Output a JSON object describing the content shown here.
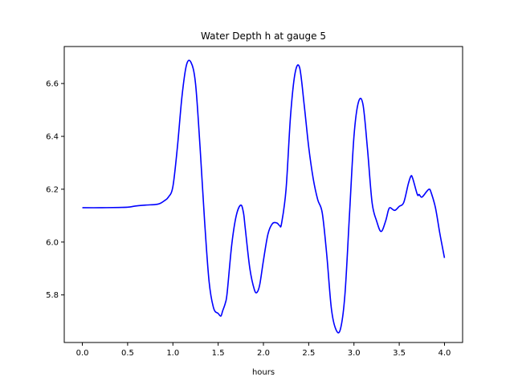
{
  "chart_data": {
    "type": "line",
    "title": "Water Depth h at gauge 5",
    "xlabel": "hours",
    "ylabel": "",
    "xlim": [
      -0.2,
      4.2
    ],
    "ylim": [
      5.62,
      6.74
    ],
    "x_ticks": [
      0.0,
      0.5,
      1.0,
      1.5,
      2.0,
      2.5,
      3.0,
      3.5,
      4.0
    ],
    "x_tick_labels": [
      "0.0",
      "0.5",
      "1.0",
      "1.5",
      "2.0",
      "2.5",
      "3.0",
      "3.5",
      "4.0"
    ],
    "y_ticks": [
      5.8,
      6.0,
      6.2,
      6.4,
      6.6
    ],
    "y_tick_labels": [
      "5.8",
      "6.0",
      "6.2",
      "6.4",
      "6.6"
    ],
    "grid": false,
    "series": [
      {
        "color": "#0000ff",
        "x": [
          0.0,
          0.2,
          0.4,
          0.5,
          0.6,
          0.7,
          0.8,
          0.85,
          0.9,
          0.95,
          1.0,
          1.05,
          1.1,
          1.15,
          1.2,
          1.25,
          1.3,
          1.35,
          1.4,
          1.45,
          1.5,
          1.53,
          1.55,
          1.58,
          1.6,
          1.65,
          1.7,
          1.75,
          1.78,
          1.8,
          1.85,
          1.9,
          1.93,
          1.96,
          2.0,
          2.05,
          2.1,
          2.15,
          2.18,
          2.2,
          2.25,
          2.3,
          2.35,
          2.4,
          2.45,
          2.5,
          2.55,
          2.6,
          2.65,
          2.7,
          2.75,
          2.8,
          2.85,
          2.9,
          2.95,
          3.0,
          3.05,
          3.1,
          3.15,
          3.2,
          3.25,
          3.3,
          3.35,
          3.38,
          3.4,
          3.45,
          3.5,
          3.55,
          3.6,
          3.63,
          3.65,
          3.7,
          3.72,
          3.75,
          3.8,
          3.83,
          3.85,
          3.9,
          3.95,
          4.0
        ],
        "y": [
          6.13,
          6.13,
          6.131,
          6.132,
          6.137,
          6.14,
          6.142,
          6.145,
          6.155,
          6.17,
          6.21,
          6.36,
          6.55,
          6.67,
          6.68,
          6.6,
          6.36,
          6.08,
          5.85,
          5.75,
          5.73,
          5.72,
          5.74,
          5.77,
          5.81,
          5.99,
          6.1,
          6.14,
          6.11,
          6.05,
          5.9,
          5.82,
          5.81,
          5.84,
          5.93,
          6.03,
          6.07,
          6.072,
          6.062,
          6.07,
          6.2,
          6.48,
          6.64,
          6.66,
          6.52,
          6.36,
          6.24,
          6.16,
          6.11,
          5.95,
          5.75,
          5.67,
          5.67,
          5.8,
          6.1,
          6.4,
          6.53,
          6.52,
          6.35,
          6.15,
          6.08,
          6.04,
          6.08,
          6.12,
          6.13,
          6.12,
          6.135,
          6.15,
          6.22,
          6.25,
          6.24,
          6.18,
          6.18,
          6.17,
          6.19,
          6.2,
          6.19,
          6.13,
          6.03,
          5.94
        ]
      }
    ]
  }
}
